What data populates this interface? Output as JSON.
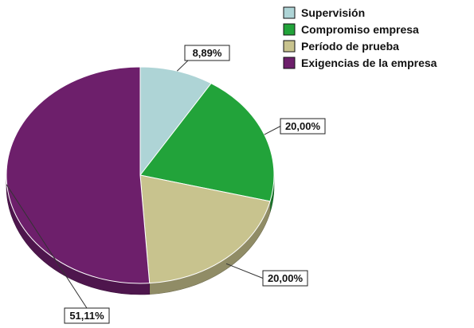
{
  "chart_data": {
    "type": "pie",
    "style": "3d",
    "legend_position": "top-right",
    "slices": [
      {
        "label": "Supervisión",
        "value": 8.89,
        "value_label": "8,89%",
        "color": "#aed4d6"
      },
      {
        "label": "Compromiso empresa",
        "value": 20.0,
        "value_label": "20,00%",
        "color": "#22a33a"
      },
      {
        "label": "Período de prueba",
        "value": 20.0,
        "value_label": "20,00%",
        "color": "#c8c38e"
      },
      {
        "label": "Exigencias de la empresa",
        "value": 51.11,
        "value_label": "51,11%",
        "color": "#6d1f6b"
      }
    ]
  }
}
